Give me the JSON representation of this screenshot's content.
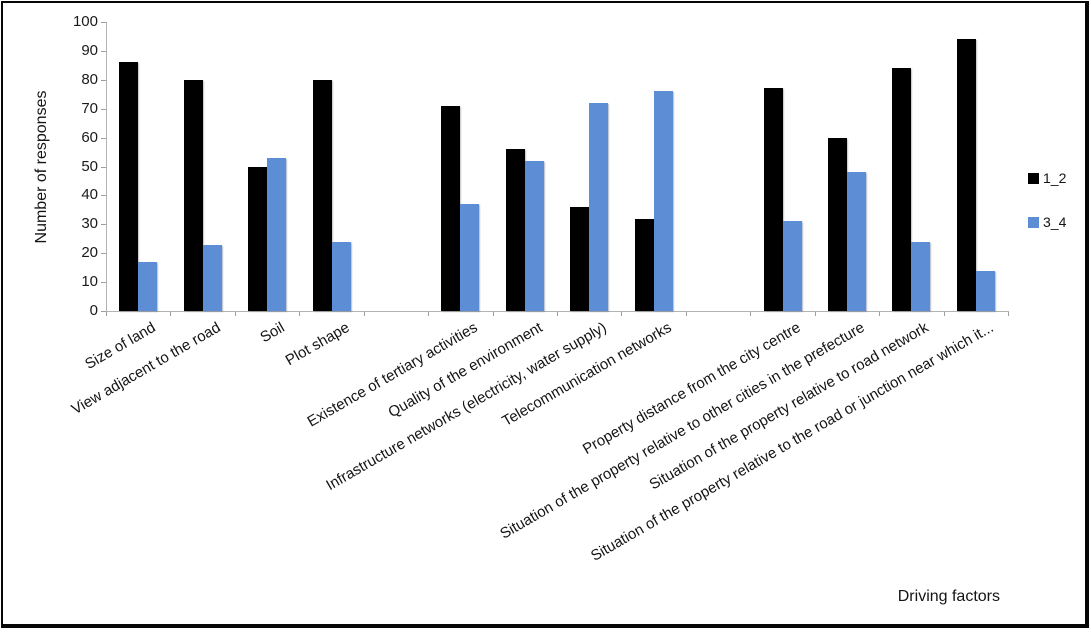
{
  "chart_data": {
    "type": "bar",
    "title": "",
    "ylabel": "Number of responses",
    "xlabel": "Driving factors",
    "ylim": [
      0,
      100
    ],
    "ytick_step": 10,
    "yticks": [
      0,
      10,
      20,
      30,
      40,
      50,
      60,
      70,
      80,
      90,
      100
    ],
    "grid": false,
    "legend_position": "right",
    "categories": [
      "Size of land",
      "View adjacent to the road",
      "Soil",
      "Plot shape",
      "",
      "Existence of tertiary activities",
      "Quality of the environment",
      "Infrastructure networks (electricity, water supply)",
      "Telecommunication networks",
      "",
      "Property distance from the city centre",
      "Situation of the property relative to other cities in the prefecture",
      "Situation of the property relative to road network",
      "Situation of the property relative to the road or junction near which it..."
    ],
    "series": [
      {
        "name": "1_2",
        "color": "#000000",
        "values": [
          86,
          80,
          50,
          80,
          null,
          71,
          56,
          36,
          32,
          null,
          77,
          60,
          84,
          94
        ]
      },
      {
        "name": "3_4",
        "color": "#5C8DD5",
        "values": [
          17,
          23,
          53,
          24,
          null,
          37,
          52,
          72,
          76,
          null,
          31,
          48,
          24,
          14
        ]
      }
    ]
  }
}
